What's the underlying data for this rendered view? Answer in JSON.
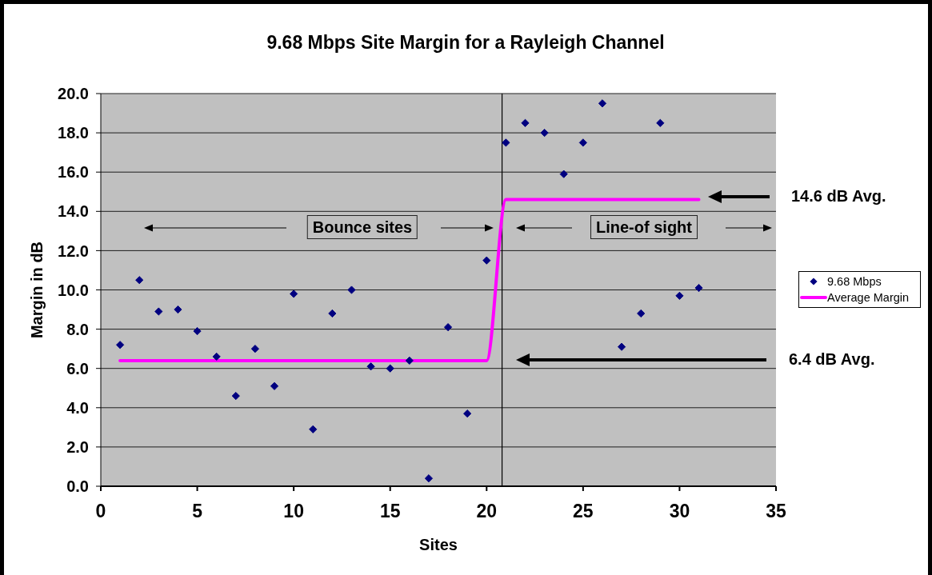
{
  "chart_data": {
    "type": "scatter",
    "title": "9.68 Mbps Site Margin for a Rayleigh Channel",
    "xlabel": "Sites",
    "ylabel": "Margin in dB",
    "xlim": [
      0,
      35
    ],
    "xticks": [
      0,
      5,
      10,
      15,
      20,
      25,
      30,
      35
    ],
    "ylim": [
      0,
      20
    ],
    "yticks": [
      {
        "value": 0,
        "label": "0.0"
      },
      {
        "value": 2,
        "label": "2.0"
      },
      {
        "value": 4,
        "label": "4.0"
      },
      {
        "value": 6,
        "label": "6.0"
      },
      {
        "value": 8,
        "label": "8.0"
      },
      {
        "value": 10,
        "label": "10.0"
      },
      {
        "value": 12,
        "label": "12.0"
      },
      {
        "value": 14,
        "label": "14.0"
      },
      {
        "value": 16,
        "label": "16.0"
      },
      {
        "value": 18,
        "label": "18.0"
      },
      {
        "value": 20,
        "label": "20.0"
      }
    ],
    "grid": "y",
    "legend": "right",
    "series": [
      {
        "name": "9.68 Mbps",
        "marker": "diamond",
        "color": "#000080",
        "x": [
          1,
          2,
          3,
          4,
          5,
          6,
          7,
          8,
          9,
          10,
          11,
          12,
          13,
          14,
          15,
          16,
          17,
          18,
          19,
          20,
          21,
          22,
          23,
          24,
          25,
          26,
          27,
          28,
          29,
          30,
          31
        ],
        "values": [
          7.2,
          10.5,
          8.9,
          9.0,
          7.9,
          6.6,
          4.6,
          7.0,
          5.1,
          9.8,
          2.9,
          8.8,
          10.0,
          6.1,
          6.0,
          6.4,
          0.4,
          8.1,
          3.7,
          11.5,
          17.5,
          18.5,
          18.0,
          15.9,
          17.5,
          19.5,
          7.1,
          8.8,
          18.5,
          9.7,
          10.1
        ]
      },
      {
        "name": "Average Margin",
        "type": "line",
        "marker": "none",
        "color": "#ff00ff",
        "x": [
          1,
          2,
          3,
          4,
          5,
          6,
          7,
          8,
          9,
          10,
          11,
          12,
          13,
          14,
          15,
          16,
          17,
          18,
          19,
          20,
          21,
          22,
          23,
          24,
          25,
          26,
          27,
          28,
          29,
          30,
          31
        ],
        "values": [
          6.4,
          6.4,
          6.4,
          6.4,
          6.4,
          6.4,
          6.4,
          6.4,
          6.4,
          6.4,
          6.4,
          6.4,
          6.4,
          6.4,
          6.4,
          6.4,
          6.4,
          6.4,
          6.4,
          6.4,
          14.6,
          14.6,
          14.6,
          14.6,
          14.6,
          14.6,
          14.6,
          14.6,
          14.6,
          14.6,
          14.6
        ]
      }
    ],
    "ref_lines": [
      {
        "axis": "x",
        "value": 20.8,
        "color": "#000000"
      }
    ],
    "annotations": [
      "Bounce sites",
      "Line-of sight",
      "14.6 dB Avg.",
      "6.4 dB Avg."
    ]
  }
}
